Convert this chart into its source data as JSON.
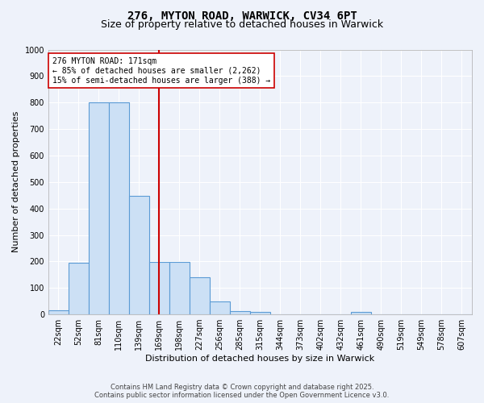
{
  "title_line1": "276, MYTON ROAD, WARWICK, CV34 6PT",
  "title_line2": "Size of property relative to detached houses in Warwick",
  "xlabel": "Distribution of detached houses by size in Warwick",
  "ylabel": "Number of detached properties",
  "categories": [
    "22sqm",
    "52sqm",
    "81sqm",
    "110sqm",
    "139sqm",
    "169sqm",
    "198sqm",
    "227sqm",
    "256sqm",
    "285sqm",
    "315sqm",
    "344sqm",
    "373sqm",
    "402sqm",
    "432sqm",
    "461sqm",
    "490sqm",
    "519sqm",
    "549sqm",
    "578sqm",
    "607sqm"
  ],
  "values": [
    15,
    195,
    800,
    800,
    447,
    197,
    197,
    140,
    48,
    12,
    10,
    0,
    0,
    0,
    0,
    10,
    0,
    0,
    0,
    0,
    0
  ],
  "bar_color": "#cce0f5",
  "bar_edge_color": "#5b9bd5",
  "vline_x": 5.0,
  "vline_color": "#cc0000",
  "annotation_text": "276 MYTON ROAD: 171sqm\n← 85% of detached houses are smaller (2,262)\n15% of semi-detached houses are larger (388) →",
  "annotation_box_color": "#ffffff",
  "annotation_box_edge": "#cc0000",
  "ylim": [
    0,
    1000
  ],
  "yticks": [
    0,
    100,
    200,
    300,
    400,
    500,
    600,
    700,
    800,
    900,
    1000
  ],
  "footer_line1": "Contains HM Land Registry data © Crown copyright and database right 2025.",
  "footer_line2": "Contains public sector information licensed under the Open Government Licence v3.0.",
  "background_color": "#eef2fa",
  "grid_color": "#ffffff",
  "title_fontsize": 10,
  "subtitle_fontsize": 9,
  "axis_label_fontsize": 8,
  "tick_fontsize": 7,
  "annotation_fontsize": 7,
  "footer_fontsize": 6
}
